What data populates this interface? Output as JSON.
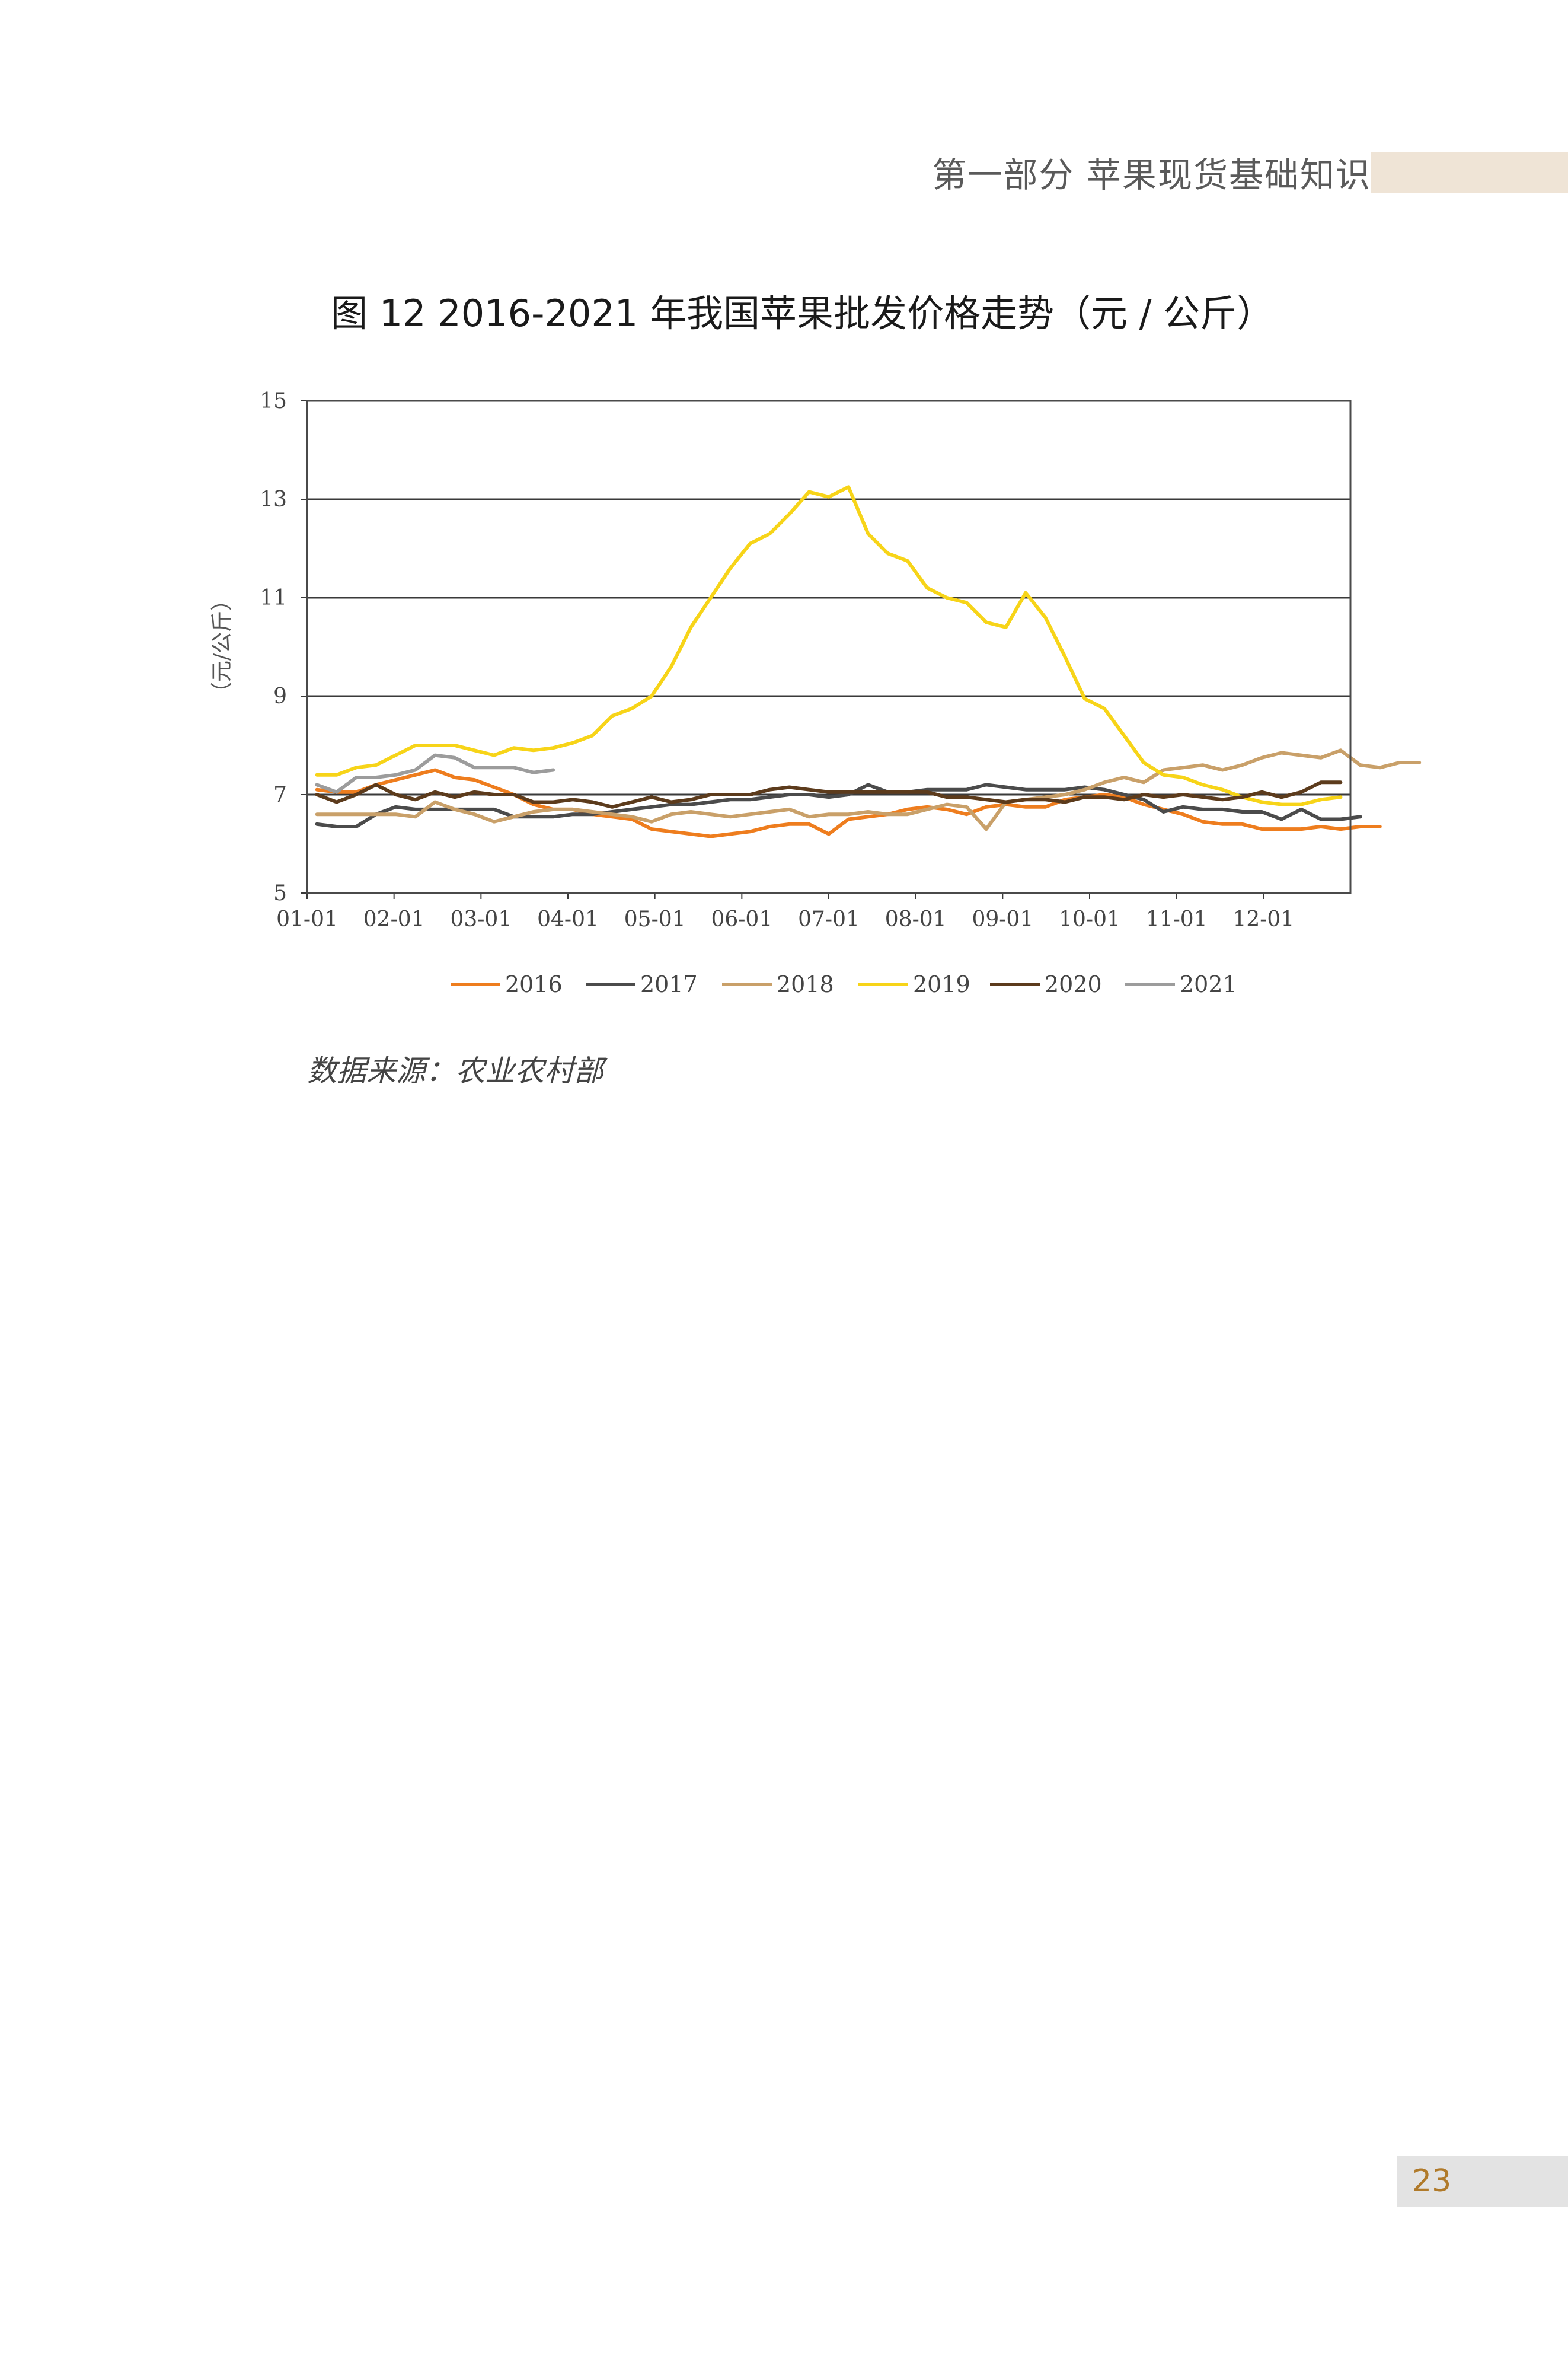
{
  "header": {
    "text": "第一部分 苹果现货基础知识"
  },
  "figure": {
    "title": "图 12  2016-2021 年我国苹果批发价格走势（元 / 公斤）"
  },
  "source": "数据来源：农业农村部",
  "page_number": "23",
  "colors": {
    "2016": "#ee7d1e",
    "2017": "#4b4b4b",
    "2018": "#c9a069",
    "2019": "#f7d418",
    "2020": "#5c3b1c",
    "2021": "#9c9c9c",
    "grid": "#3a3a3a",
    "header_band": "#efe4d6"
  },
  "chart_data": {
    "type": "line",
    "ylabel": "（元/公斤）",
    "ylim": [
      5,
      15
    ],
    "yticks": [
      "5",
      "7",
      "9",
      "11",
      "13",
      "15"
    ],
    "xticks": [
      "01-01",
      "02-01",
      "03-01",
      "04-01",
      "05-01",
      "06-01",
      "07-01",
      "08-01",
      "09-01",
      "10-01",
      "11-01",
      "12-01"
    ],
    "x_unit": "week of year",
    "legend_position": "bottom",
    "grid": true,
    "series": [
      {
        "name": "2016",
        "values": [
          7.1,
          7.05,
          7.05,
          7.2,
          7.3,
          7.4,
          7.5,
          7.35,
          7.3,
          7.15,
          7.0,
          6.8,
          6.7,
          6.7,
          6.6,
          6.55,
          6.5,
          6.3,
          6.25,
          6.2,
          6.15,
          6.2,
          6.25,
          6.35,
          6.4,
          6.4,
          6.2,
          6.5,
          6.55,
          6.6,
          6.7,
          6.75,
          6.7,
          6.6,
          6.75,
          6.8,
          6.75,
          6.75,
          6.9,
          6.95,
          7.0,
          6.95,
          6.8,
          6.7,
          6.6,
          6.45,
          6.4,
          6.4,
          6.3,
          6.3,
          6.3,
          6.35,
          6.3,
          6.35,
          6.35
        ]
      },
      {
        "name": "2017",
        "values": [
          6.4,
          6.35,
          6.35,
          6.6,
          6.75,
          6.7,
          6.7,
          6.7,
          6.7,
          6.7,
          6.55,
          6.55,
          6.55,
          6.6,
          6.6,
          6.65,
          6.7,
          6.75,
          6.8,
          6.8,
          6.85,
          6.9,
          6.9,
          6.95,
          7.0,
          7.0,
          6.95,
          7.0,
          7.2,
          7.05,
          7.05,
          7.1,
          7.1,
          7.1,
          7.2,
          7.15,
          7.1,
          7.1,
          7.1,
          7.15,
          7.1,
          7.0,
          6.9,
          6.65,
          6.75,
          6.7,
          6.7,
          6.65,
          6.65,
          6.5,
          6.7,
          6.5,
          6.5,
          6.55
        ]
      },
      {
        "name": "2018",
        "values": [
          6.6,
          6.6,
          6.6,
          6.6,
          6.6,
          6.55,
          6.85,
          6.7,
          6.6,
          6.45,
          6.55,
          6.65,
          6.7,
          6.7,
          6.65,
          6.6,
          6.55,
          6.45,
          6.6,
          6.65,
          6.6,
          6.55,
          6.6,
          6.65,
          6.7,
          6.55,
          6.6,
          6.6,
          6.65,
          6.6,
          6.6,
          6.7,
          6.8,
          6.75,
          6.3,
          6.85,
          6.9,
          6.95,
          7.0,
          7.1,
          7.25,
          7.35,
          7.25,
          7.5,
          7.55,
          7.6,
          7.5,
          7.6,
          7.75,
          7.85,
          7.8,
          7.75,
          7.9,
          7.6,
          7.55,
          7.65,
          7.65
        ]
      },
      {
        "name": "2019",
        "values": [
          7.4,
          7.4,
          7.55,
          7.6,
          7.8,
          8.0,
          8.0,
          8.0,
          7.9,
          7.8,
          7.95,
          7.9,
          7.95,
          8.05,
          8.2,
          8.6,
          8.75,
          9.0,
          9.6,
          10.4,
          11.0,
          11.6,
          12.1,
          12.3,
          12.7,
          13.15,
          13.05,
          13.25,
          12.3,
          11.9,
          11.75,
          11.2,
          11.0,
          10.9,
          10.5,
          10.4,
          11.1,
          10.6,
          9.8,
          8.95,
          8.75,
          8.2,
          7.65,
          7.4,
          7.35,
          7.2,
          7.1,
          6.95,
          6.85,
          6.8,
          6.8,
          6.9,
          6.95
        ]
      },
      {
        "name": "2020",
        "values": [
          7.0,
          6.85,
          7.0,
          7.2,
          7.0,
          6.9,
          7.05,
          6.95,
          7.05,
          7.0,
          7.0,
          6.85,
          6.85,
          6.9,
          6.85,
          6.75,
          6.85,
          6.95,
          6.85,
          6.9,
          7.0,
          7.0,
          7.0,
          7.1,
          7.15,
          7.1,
          7.05,
          7.05,
          7.05,
          7.05,
          7.05,
          7.05,
          6.95,
          6.95,
          6.9,
          6.85,
          6.9,
          6.9,
          6.85,
          6.95,
          6.95,
          6.9,
          7.0,
          6.95,
          7.0,
          6.95,
          6.9,
          6.95,
          7.05,
          6.95,
          7.05,
          7.25,
          7.25
        ]
      },
      {
        "name": "2021",
        "values": [
          7.2,
          7.05,
          7.35,
          7.35,
          7.4,
          7.5,
          7.8,
          7.75,
          7.55,
          7.55,
          7.55,
          7.45,
          7.5
        ]
      }
    ]
  }
}
